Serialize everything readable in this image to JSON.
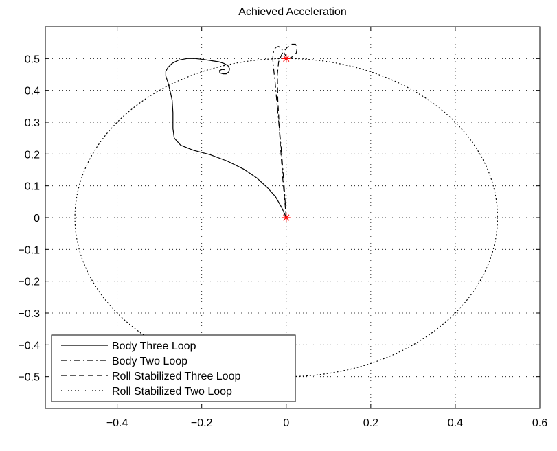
{
  "chart_data": {
    "type": "line",
    "title": "Achieved Acceleration",
    "xlabel": "",
    "ylabel": "",
    "xlim": [
      -0.57,
      0.6
    ],
    "ylim": [
      -0.6,
      0.6
    ],
    "grid": true,
    "legend_position": "bottom-left",
    "x_ticks": [
      -0.4,
      -0.2,
      0,
      0.2,
      0.4,
      0.6
    ],
    "x_tick_labels": [
      "−0.4",
      "−0.2",
      "0",
      "0.2",
      "0.4",
      "0.6"
    ],
    "y_ticks": [
      -0.5,
      -0.4,
      -0.3,
      -0.2,
      -0.1,
      0,
      0.1,
      0.2,
      0.3,
      0.4,
      0.5
    ],
    "y_tick_labels": [
      "−0.5",
      "−0.4",
      "−0.3",
      "−0.2",
      "−0.1",
      "0",
      "0.1",
      "0.2",
      "0.3",
      "0.4",
      "0.5"
    ],
    "series": [
      {
        "name": "Body Three Loop",
        "style": "solid",
        "color": "#000000",
        "x": [
          0,
          -0.01,
          -0.025,
          -0.045,
          -0.07,
          -0.1,
          -0.14,
          -0.18,
          -0.22,
          -0.25,
          -0.265,
          -0.268,
          -0.268,
          -0.27,
          -0.275,
          -0.28,
          -0.285,
          -0.285,
          -0.28,
          -0.27,
          -0.255,
          -0.235,
          -0.215,
          -0.195,
          -0.175,
          -0.16,
          -0.148,
          -0.138,
          -0.134,
          -0.136,
          -0.142,
          -0.15,
          -0.157,
          -0.158,
          -0.152,
          -0.146
        ],
        "y": [
          0,
          0.03,
          0.065,
          0.095,
          0.125,
          0.152,
          0.178,
          0.198,
          0.212,
          0.228,
          0.25,
          0.28,
          0.33,
          0.37,
          0.4,
          0.425,
          0.445,
          0.46,
          0.472,
          0.485,
          0.495,
          0.5,
          0.5,
          0.497,
          0.493,
          0.49,
          0.485,
          0.478,
          0.468,
          0.458,
          0.452,
          0.452,
          0.455,
          0.462,
          0.466,
          0.465
        ]
      },
      {
        "name": "Body Two Loop",
        "style": "dashdot",
        "color": "#000000",
        "x": [
          0,
          -0.005,
          -0.012,
          -0.02,
          -0.026,
          -0.03,
          -0.032,
          -0.03,
          -0.025,
          -0.018,
          -0.012,
          -0.006,
          -0.001,
          0.001
        ],
        "y": [
          0,
          0.1,
          0.22,
          0.33,
          0.42,
          0.47,
          0.5,
          0.522,
          0.535,
          0.538,
          0.532,
          0.52,
          0.508,
          0.5
        ]
      },
      {
        "name": "Roll Stabilized Three Loop",
        "style": "dashed",
        "color": "#000000",
        "x": [
          0,
          -0.008,
          -0.015,
          -0.02,
          -0.021,
          -0.018,
          -0.01,
          0.002,
          0.013,
          0.022,
          0.026,
          0.024,
          0.015,
          0.006,
          0.001
        ],
        "y": [
          0,
          0.12,
          0.25,
          0.37,
          0.45,
          0.49,
          0.515,
          0.535,
          0.545,
          0.545,
          0.535,
          0.518,
          0.506,
          0.5,
          0.5
        ]
      },
      {
        "name": "Roll Stabilized Two Loop",
        "style": "dotted",
        "color": "#000000",
        "shape": "circle",
        "center": [
          0,
          0
        ],
        "radius": 0.5
      }
    ],
    "markers": [
      {
        "label": "start",
        "x": 0,
        "y": 0,
        "symbol": "*",
        "color": "#ff0000"
      },
      {
        "label": "target",
        "x": 0,
        "y": 0.5,
        "symbol": "*",
        "color": "#ff0000"
      }
    ]
  }
}
